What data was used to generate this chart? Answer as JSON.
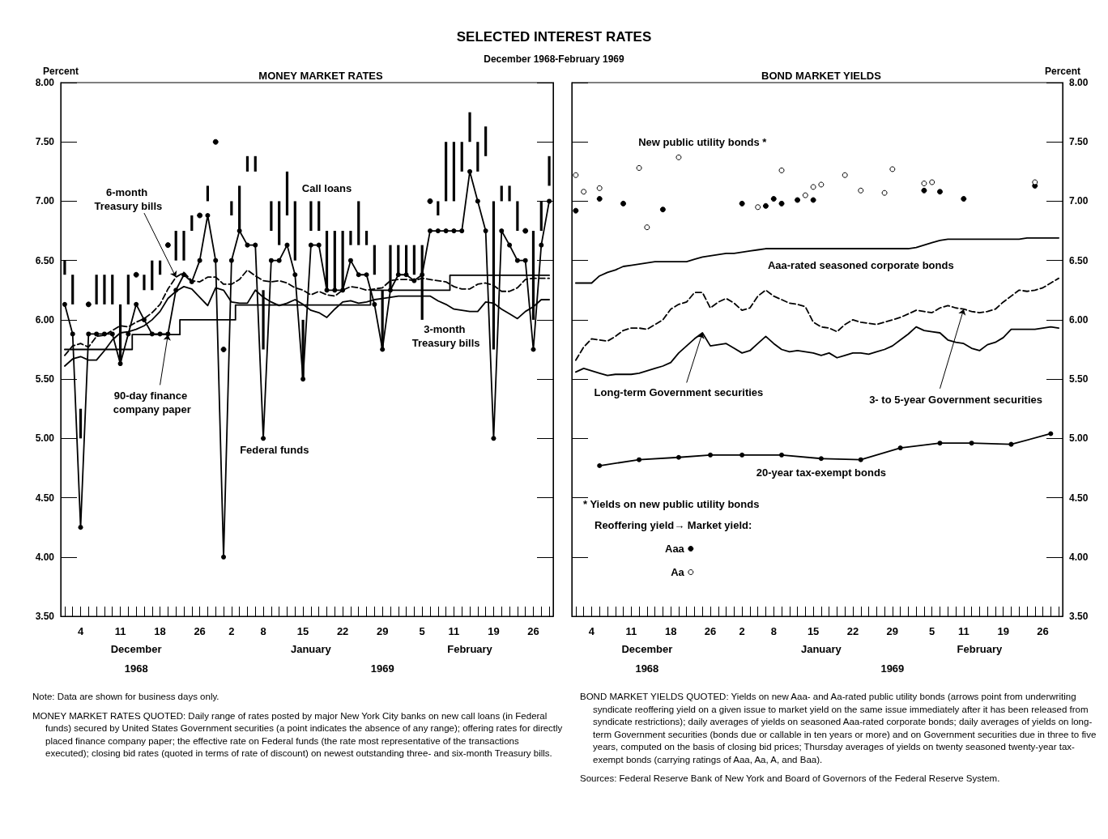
{
  "chart_data": [
    {
      "type": "line",
      "title": "MONEY MARKET RATES",
      "ylabel": "Percent",
      "ylim": [
        3.5,
        8
      ],
      "yticks": [
        {
          "value": 3.5,
          "label": "3.50"
        },
        {
          "value": 4,
          "label": "4.00"
        },
        {
          "value": 4.5,
          "label": "4.50"
        },
        {
          "value": 5,
          "label": "5.00"
        },
        {
          "value": 5.5,
          "label": "5.50"
        },
        {
          "value": 6,
          "label": "6.00"
        },
        {
          "value": 6.5,
          "label": "6.50"
        },
        {
          "value": 7,
          "label": "7.00"
        },
        {
          "value": 7.5,
          "label": "7.50"
        },
        {
          "value": 8,
          "label": "8.00"
        }
      ],
      "legend": false,
      "categories": [
        null,
        null,
        "4",
        null,
        null,
        null,
        null,
        "11",
        null,
        null,
        null,
        null,
        "18",
        null,
        null,
        null,
        null,
        "26",
        null,
        null,
        null,
        "2",
        null,
        null,
        null,
        "8",
        null,
        null,
        null,
        null,
        "15",
        null,
        null,
        null,
        null,
        "22",
        null,
        null,
        null,
        null,
        "29",
        null,
        null,
        null,
        null,
        "5",
        null,
        null,
        null,
        "11",
        null,
        null,
        null,
        null,
        "19",
        null,
        null,
        null,
        null,
        "26",
        null,
        null
      ],
      "annotations": [
        "December",
        "1968",
        "January",
        "1969",
        "February",
        "SELECTED INTEREST RATES",
        "December 1968-February 1969",
        "Note: Data are shown for business days only.",
        "MONEY MARKET RATES QUOTED: Daily range of rates posted by major New York City banks on new call loans (in Federal funds) secured by United States Government securities (a point indicates the absence of any range); offering rates for directly placed finance company paper; the effective rate on Federal funds (the rate most representative of the transactions executed); closing bid rates (quoted in terms of rate of discount) on newest outstanding three- and six-month Treasury bills."
      ],
      "series": [
        {
          "name": "Call loans",
          "type": "bar",
          "color": "#000000",
          "base": [
            6.38,
            6.13,
            5.0,
            null,
            6.13,
            6.13,
            6.13,
            5.63,
            6.13,
            null,
            6.25,
            6.25,
            6.38,
            null,
            6.5,
            6.5,
            6.75,
            null,
            7.0,
            null,
            null,
            6.88,
            6.75,
            7.25,
            7.25,
            5.75,
            6.75,
            6.63,
            6.88,
            6.5,
            5.5,
            6.75,
            6.75,
            6.25,
            6.25,
            6.25,
            6.63,
            6.63,
            6.63,
            6.38,
            5.75,
            6.25,
            6.38,
            6.38,
            6.38,
            6.0,
            null,
            6.88,
            7.0,
            7.0,
            7.25,
            7.5,
            7.25,
            7.38,
            5.75,
            7.0,
            7.0,
            6.75,
            null,
            6.0,
            6.75,
            7.13
          ],
          "values": [
            0.12,
            0.25,
            0.25,
            null,
            0.25,
            0.25,
            0.25,
            0.5,
            0.25,
            null,
            0.13,
            0.25,
            0.12,
            null,
            0.25,
            0.25,
            0.13,
            null,
            0.13,
            null,
            null,
            0.12,
            0.38,
            0.13,
            0.13,
            0.5,
            0.25,
            0.37,
            0.37,
            0.5,
            0.5,
            0.25,
            0.25,
            0.5,
            0.5,
            0.5,
            0.12,
            0.37,
            0.12,
            0.25,
            0.5,
            0.38,
            0.25,
            0.25,
            0.25,
            0.63,
            null,
            0.12,
            0.5,
            0.5,
            0.25,
            0.25,
            0.25,
            0.25,
            1.25,
            0.13,
            0.13,
            0.25,
            null,
            0.75,
            0.25,
            0.25
          ]
        },
        {
          "type": "scatter",
          "color": "#000000",
          "marker": "circle",
          "values": [
            null,
            null,
            null,
            6.13,
            null,
            null,
            null,
            null,
            null,
            6.38,
            null,
            null,
            null,
            6.63,
            null,
            null,
            null,
            6.88,
            null,
            7.5,
            5.75,
            null,
            null,
            null,
            null,
            null,
            null,
            null,
            null,
            null,
            null,
            null,
            null,
            null,
            null,
            null,
            null,
            null,
            null,
            null,
            null,
            null,
            null,
            null,
            null,
            null,
            7.0,
            null,
            null,
            null,
            null,
            null,
            null,
            null,
            null,
            null,
            null,
            null,
            6.75,
            null,
            null,
            null
          ]
        },
        {
          "name": "Federal funds",
          "type": "line",
          "color": "#000000",
          "marker": "circle",
          "values": [
            6.13,
            5.88,
            4.25,
            5.88,
            5.88,
            5.88,
            5.88,
            5.63,
            5.88,
            6.13,
            6.0,
            5.88,
            5.88,
            5.88,
            6.25,
            6.38,
            6.32,
            6.5,
            6.88,
            6.5,
            4.0,
            6.5,
            6.75,
            6.63,
            6.63,
            5.0,
            6.5,
            6.5,
            6.63,
            6.38,
            5.5,
            6.63,
            6.63,
            6.25,
            6.25,
            6.25,
            6.5,
            6.38,
            6.38,
            6.13,
            5.75,
            6.25,
            6.38,
            6.38,
            6.33,
            6.38,
            6.75,
            6.75,
            6.75,
            6.75,
            6.75,
            7.25,
            7.0,
            6.75,
            5.0,
            6.75,
            6.63,
            6.5,
            6.5,
            5.75,
            6.63,
            7.0
          ]
        },
        {
          "name": "6-month Treasury bills",
          "type": "line",
          "color": "#000000",
          "line_style": "dashed",
          "values": [
            5.7,
            5.78,
            5.8,
            5.77,
            5.86,
            5.87,
            5.91,
            5.95,
            5.94,
            5.98,
            6.01,
            6.06,
            6.13,
            6.26,
            6.36,
            6.4,
            6.33,
            6.32,
            6.36,
            6.36,
            6.3,
            6.3,
            6.34,
            6.42,
            6.37,
            6.33,
            6.32,
            6.33,
            6.31,
            6.27,
            6.25,
            6.21,
            6.24,
            6.21,
            6.2,
            6.25,
            6.28,
            6.27,
            6.25,
            6.26,
            6.27,
            6.33,
            6.34,
            6.34,
            6.33,
            6.35,
            6.34,
            6.33,
            6.32,
            6.28,
            6.26,
            6.26,
            6.3,
            6.31,
            6.29,
            6.24,
            6.24,
            6.27,
            6.34,
            6.35,
            6.35,
            6.35
          ]
        },
        {
          "name": "3-month Treasury bills",
          "type": "line",
          "color": "#000000",
          "values": [
            5.61,
            5.67,
            5.69,
            5.66,
            5.66,
            5.74,
            5.83,
            5.89,
            5.9,
            5.92,
            5.95,
            6.0,
            6.07,
            6.18,
            6.24,
            6.28,
            6.26,
            6.19,
            6.12,
            6.27,
            6.25,
            6.15,
            6.14,
            6.14,
            6.25,
            6.19,
            6.15,
            6.12,
            6.14,
            6.17,
            6.13,
            6.08,
            6.06,
            6.02,
            6.09,
            6.15,
            6.16,
            6.14,
            6.15,
            6.17,
            6.18,
            6.19,
            6.2,
            6.2,
            6.2,
            6.2,
            6.2,
            6.16,
            6.13,
            6.09,
            6.08,
            6.07,
            6.07,
            6.15,
            6.14,
            6.09,
            6.05,
            6.01,
            6.07,
            6.11,
            6.17,
            6.17
          ]
        },
        {
          "name": "90-day finance company paper",
          "type": "step",
          "color": "#000000",
          "values": [
            5.75,
            5.75,
            5.75,
            5.75,
            5.75,
            5.75,
            5.75,
            5.75,
            5.75,
            5.875,
            5.875,
            5.875,
            5.875,
            5.875,
            5.875,
            6.0,
            6.0,
            6.0,
            6.0,
            6.0,
            6.0,
            6.0,
            6.125,
            6.125,
            6.125,
            6.125,
            6.125,
            6.125,
            6.125,
            6.125,
            6.125,
            6.125,
            6.125,
            6.125,
            6.125,
            6.125,
            6.125,
            6.125,
            6.125,
            6.25,
            6.25,
            6.25,
            6.25,
            6.25,
            6.25,
            6.25,
            6.25,
            6.25,
            6.25,
            6.375,
            6.375,
            6.375,
            6.375,
            6.375,
            6.375,
            6.375,
            6.375,
            6.375,
            6.375,
            6.375,
            6.375,
            6.375
          ]
        }
      ]
    },
    {
      "type": "line",
      "title": "BOND MARKET YIELDS",
      "ylabel": "Percent",
      "ylim": [
        3.5,
        8
      ],
      "yticks": [
        {
          "value": 3.5,
          "label": "3.50"
        },
        {
          "value": 4,
          "label": "4.00"
        },
        {
          "value": 4.5,
          "label": "4.50"
        },
        {
          "value": 5,
          "label": "5.00"
        },
        {
          "value": 5.5,
          "label": "5.50"
        },
        {
          "value": 6,
          "label": "6.00"
        },
        {
          "value": 6.5,
          "label": "6.50"
        },
        {
          "value": 7,
          "label": "7.00"
        },
        {
          "value": 7.5,
          "label": "7.50"
        },
        {
          "value": 8,
          "label": "8.00"
        }
      ],
      "legend": "bottom left",
      "legend_title": "* Yields on new public utility bonds\nReoffering yield→ Market yield:",
      "categories": [
        null,
        null,
        "4",
        null,
        null,
        null,
        null,
        "11",
        null,
        null,
        null,
        null,
        "18",
        null,
        null,
        null,
        null,
        "26",
        null,
        null,
        null,
        "2",
        null,
        null,
        null,
        "8",
        null,
        null,
        null,
        null,
        "15",
        null,
        null,
        null,
        null,
        "22",
        null,
        null,
        null,
        null,
        "29",
        null,
        null,
        null,
        null,
        "5",
        null,
        null,
        null,
        "11",
        null,
        null,
        null,
        null,
        "19",
        null,
        null,
        null,
        null,
        "26",
        null,
        null
      ],
      "annotations": [
        "December",
        "1968",
        "January",
        "1969",
        "February",
        "New public utility bonds *",
        "BOND MARKET YIELDS QUOTED: Yields on new Aaa- and Aa-rated public utility bonds (arrows point from underwriting syndicate reoffering yield on a given issue to market yield on the same issue immediately after it has been released from syndicate restrictions); daily averages of yields on seasoned Aaa-rated corporate bonds; daily averages of yields on long-term Government securities (bonds due or callable in ten years or more) and on Government securities due in three to five years, computed on the basis of closing bid prices; Thursday averages of yields on twenty seasoned twenty-year tax-exempt bonds (carrying ratings of Aaa, Aa, A, and Baa).",
        "Sources: Federal Reserve Bank of New York and Board of Governors of the Federal Reserve System."
      ],
      "series": [
        {
          "name": "Aaa",
          "type": "scatter",
          "color": "#000000",
          "marker": "circle",
          "values": [
            6.92,
            null,
            null,
            7.02,
            null,
            null,
            6.98,
            null,
            null,
            null,
            null,
            6.93,
            null,
            null,
            null,
            null,
            null,
            null,
            null,
            null,
            null,
            6.98,
            null,
            null,
            6.96,
            7.02,
            6.98,
            null,
            7.01,
            null,
            7.01,
            null,
            null,
            null,
            null,
            null,
            null,
            null,
            null,
            null,
            null,
            null,
            null,
            null,
            7.09,
            null,
            7.08,
            null,
            null,
            7.02,
            null,
            null,
            null,
            null,
            null,
            null,
            null,
            null,
            7.13,
            null,
            null,
            null
          ]
        },
        {
          "name": "Aa",
          "type": "scatter",
          "color": "#ffffff",
          "marker": "circle",
          "values": [
            7.22,
            7.08,
            null,
            7.11,
            null,
            null,
            null,
            null,
            7.28,
            6.78,
            null,
            null,
            null,
            7.37,
            null,
            null,
            null,
            null,
            null,
            null,
            null,
            null,
            null,
            6.95,
            null,
            null,
            7.26,
            null,
            null,
            7.05,
            7.12,
            7.14,
            null,
            null,
            7.22,
            null,
            7.09,
            null,
            null,
            7.07,
            7.27,
            null,
            null,
            null,
            7.15,
            7.16,
            null,
            null,
            null,
            null,
            null,
            null,
            null,
            null,
            null,
            null,
            null,
            null,
            7.16,
            null,
            null,
            null
          ]
        },
        {
          "name": "Aaa-rated seasoned corporate bonds",
          "type": "line",
          "color": "#000000",
          "values": [
            6.31,
            6.31,
            6.31,
            6.37,
            6.4,
            6.42,
            6.45,
            6.46,
            6.47,
            6.48,
            6.49,
            6.49,
            6.49,
            6.49,
            6.49,
            6.51,
            6.53,
            6.54,
            6.55,
            6.56,
            6.56,
            6.57,
            6.58,
            6.59,
            6.6,
            6.6,
            6.6,
            6.6,
            6.6,
            6.6,
            6.6,
            6.6,
            6.6,
            6.6,
            6.6,
            6.6,
            6.6,
            6.6,
            6.6,
            6.6,
            6.6,
            6.6,
            6.6,
            6.61,
            6.63,
            6.65,
            6.67,
            6.68,
            6.68,
            6.68,
            6.68,
            6.68,
            6.68,
            6.68,
            6.68,
            6.68,
            6.68,
            6.69,
            6.69,
            6.69,
            6.69,
            6.69
          ]
        },
        {
          "name": "Long-term Government securities",
          "type": "line",
          "color": "#000000",
          "values": [
            5.56,
            5.59,
            5.57,
            5.55,
            5.53,
            5.54,
            5.54,
            5.54,
            5.55,
            5.57,
            5.59,
            5.61,
            5.64,
            5.72,
            5.78,
            5.84,
            5.89,
            5.78,
            5.79,
            5.8,
            5.76,
            5.72,
            5.74,
            5.8,
            5.86,
            5.8,
            5.75,
            5.73,
            5.74,
            5.73,
            5.72,
            5.7,
            5.72,
            5.68,
            5.7,
            5.72,
            5.72,
            5.71,
            5.73,
            5.75,
            5.78,
            5.83,
            5.88,
            5.94,
            5.91,
            5.9,
            5.89,
            5.83,
            5.81,
            5.8,
            5.76,
            5.74,
            5.79,
            5.81,
            5.85,
            5.92,
            5.92,
            5.92,
            5.92,
            5.93,
            5.94,
            5.93
          ]
        },
        {
          "name": "3- to 5-year Government securities",
          "type": "line",
          "color": "#000000",
          "line_style": "dashed",
          "values": [
            5.66,
            5.77,
            5.84,
            5.83,
            5.82,
            5.86,
            5.91,
            5.93,
            5.93,
            5.92,
            5.96,
            6.0,
            6.09,
            6.13,
            6.15,
            6.23,
            6.23,
            6.1,
            6.15,
            6.18,
            6.14,
            6.08,
            6.1,
            6.2,
            6.25,
            6.2,
            6.17,
            6.14,
            6.13,
            6.11,
            5.98,
            5.94,
            5.93,
            5.9,
            5.96,
            6.0,
            5.98,
            5.97,
            5.96,
            5.98,
            6.0,
            6.02,
            6.05,
            6.08,
            6.07,
            6.06,
            6.1,
            6.12,
            6.1,
            6.09,
            6.07,
            6.06,
            6.07,
            6.09,
            6.15,
            6.2,
            6.25,
            6.24,
            6.25,
            6.27,
            6.31,
            6.35
          ]
        },
        {
          "name": "20-year tax-exempt bonds",
          "type": "line",
          "color": "#000000",
          "marker": "circle",
          "values": [
            null,
            null,
            null,
            4.77,
            null,
            null,
            null,
            null,
            4.82,
            null,
            null,
            null,
            null,
            4.84,
            null,
            null,
            null,
            4.86,
            null,
            null,
            null,
            4.86,
            null,
            null,
            null,
            null,
            4.86,
            null,
            null,
            null,
            null,
            4.83,
            null,
            null,
            null,
            null,
            4.82,
            null,
            null,
            null,
            null,
            4.92,
            null,
            null,
            null,
            null,
            4.96,
            null,
            null,
            null,
            4.96,
            null,
            null,
            null,
            null,
            4.95,
            null,
            null,
            null,
            null,
            5.04,
            null
          ]
        }
      ]
    }
  ]
}
